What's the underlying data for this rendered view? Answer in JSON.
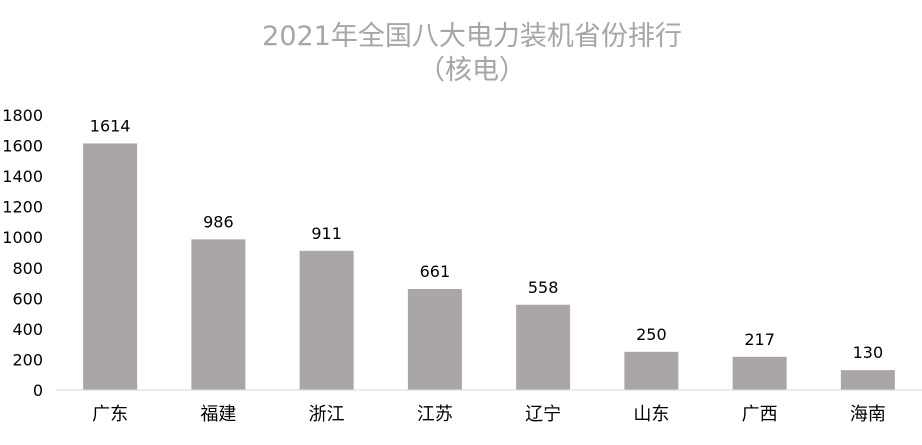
{
  "chart_data": {
    "type": "bar",
    "title_line1": "2021年全国八大电力装机省份排行",
    "title_line2": "（核电）",
    "categories": [
      "广东",
      "福建",
      "浙江",
      "江苏",
      "辽宁",
      "山东",
      "广西",
      "海南"
    ],
    "values": [
      1614,
      986,
      911,
      661,
      558,
      250,
      217,
      130
    ],
    "data_labels": [
      "1614",
      "986",
      "911",
      "661",
      "558",
      "250",
      "217",
      "130"
    ],
    "y_ticks": [
      "0",
      "200",
      "400",
      "600",
      "800",
      "1000",
      "1200",
      "1400",
      "1600",
      "1800"
    ],
    "ylim": [
      0,
      1800
    ],
    "grid": false,
    "legend": false,
    "colors": {
      "bar": "#aba6a6",
      "title": "#a6a6a6",
      "text": "#000000",
      "axis": "#d9d9d9",
      "background": "#ffffff"
    }
  }
}
